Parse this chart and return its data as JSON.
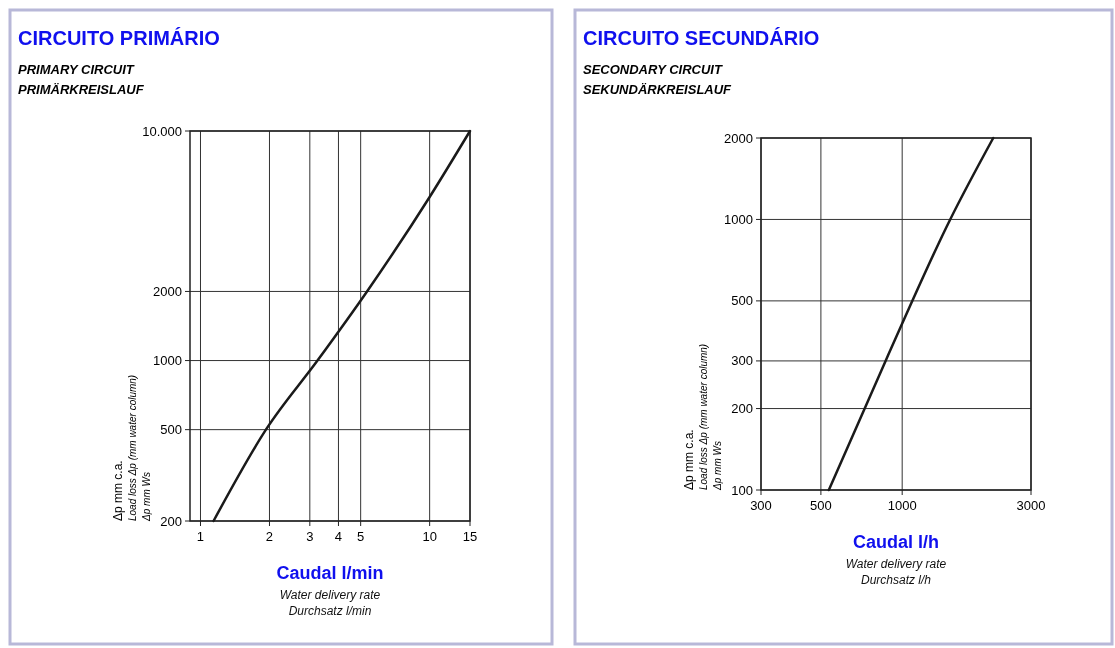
{
  "chart_data": [
    {
      "type": "line",
      "title": "CIRCUITO PRIMÁRIO",
      "subtitle": "PRIMARY CIRCUIT\nPRIMÄRKREISLAUF",
      "xlabel": "Caudal l/min\nWater delivery rate\nDurchsatz l/min",
      "ylabel": "Δp mm c.a.\nLoad loss Δp (mm water column)\nΔp mm Ws",
      "log": "xy",
      "grid": true,
      "line_style": "solid",
      "series": [
        {
          "color": "#1a1a1a",
          "x": [
            1.14,
            1.93,
            3.24,
            5.33,
            10,
            15
          ],
          "values": [
            200,
            500,
            1000,
            2000,
            5160,
            10000
          ]
        }
      ],
      "xlim": [
        0.9,
        15
      ],
      "xticks": [
        1,
        2,
        3,
        4,
        5,
        10,
        15
      ],
      "ylim": [
        200,
        10000
      ],
      "yticks": [
        200,
        500,
        1000,
        2000,
        {
          "value": 10000,
          "label": "10.000"
        }
      ]
    },
    {
      "type": "line",
      "title": "CIRCUITO SECUNDÁRIO",
      "subtitle": "SECONDARY CIRCUIT\nSEKUNDÄRKREISLAUF",
      "xlabel": "Caudal l/h\nWater delivery rate\nDurchsatz l/h",
      "ylabel": "Δp mm c.a.\nLoad loss Δp (mm water column)\nΔp mm Ws",
      "log": "xy",
      "grid": true,
      "line_style": "solid",
      "series": [
        {
          "color": "#1a1a1a",
          "x": [
            535,
            868,
            1506,
            2174
          ],
          "values": [
            100,
            300,
            1000,
            2000
          ]
        }
      ],
      "xlim": [
        300,
        3000
      ],
      "xticks": [
        300,
        500,
        1000,
        3000
      ],
      "ylim": [
        100,
        2000
      ],
      "yticks": [
        100,
        200,
        300,
        500,
        1000,
        2000
      ]
    }
  ]
}
